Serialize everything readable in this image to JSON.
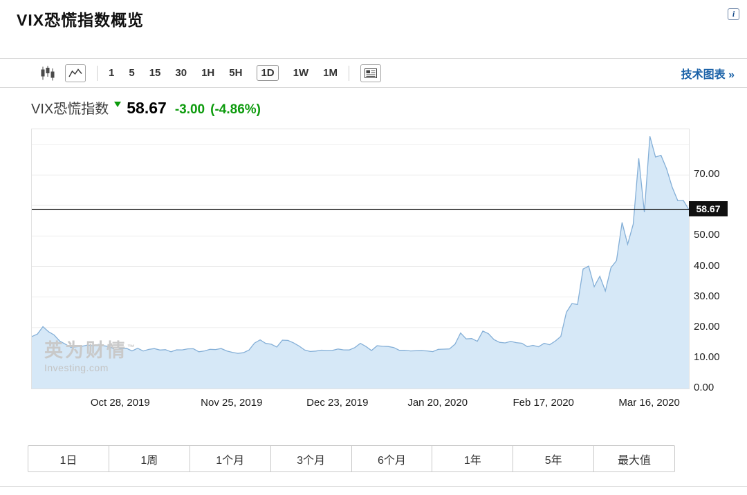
{
  "page": {
    "title": "VIX恐慌指数概览",
    "info_glyph": "i"
  },
  "toolbar": {
    "intervals": [
      "1",
      "5",
      "15",
      "30",
      "1H",
      "5H",
      "1D",
      "1W",
      "1M"
    ],
    "selected_interval": "1D",
    "tech_chart_link": "技术图表 »",
    "link_color": "#1b62a8"
  },
  "quote": {
    "name": "VIX恐慌指数",
    "price": "58.67",
    "change": "-3.00",
    "change_percent": "(-4.86%)",
    "direction": "down",
    "change_color": "#0d9b0d"
  },
  "watermark": {
    "cn": "英为财情",
    "tm": "™",
    "en": "Investing.com"
  },
  "ranges": [
    "1日",
    "1周",
    "1个月",
    "3个月",
    "6个月",
    "1年",
    "5年",
    "最大值"
  ],
  "chart_data": {
    "type": "area",
    "title": "VIX恐慌指数",
    "xlabel": "",
    "ylabel": "",
    "grid": true,
    "legend": "none",
    "ylim": [
      0,
      85
    ],
    "current_price": 58.67,
    "x": [
      "2019-10-04",
      "2019-10-07",
      "2019-10-08",
      "2019-10-09",
      "2019-10-10",
      "2019-10-11",
      "2019-10-14",
      "2019-10-15",
      "2019-10-16",
      "2019-10-17",
      "2019-10-18",
      "2019-10-21",
      "2019-10-22",
      "2019-10-23",
      "2019-10-24",
      "2019-10-25",
      "2019-10-28",
      "2019-10-29",
      "2019-10-30",
      "2019-10-31",
      "2019-11-01",
      "2019-11-04",
      "2019-11-05",
      "2019-11-06",
      "2019-11-07",
      "2019-11-08",
      "2019-11-11",
      "2019-11-12",
      "2019-11-13",
      "2019-11-14",
      "2019-11-15",
      "2019-11-18",
      "2019-11-19",
      "2019-11-20",
      "2019-11-21",
      "2019-11-22",
      "2019-11-25",
      "2019-11-26",
      "2019-11-27",
      "2019-11-29",
      "2019-12-02",
      "2019-12-03",
      "2019-12-04",
      "2019-12-05",
      "2019-12-06",
      "2019-12-09",
      "2019-12-10",
      "2019-12-11",
      "2019-12-12",
      "2019-12-13",
      "2019-12-16",
      "2019-12-17",
      "2019-12-18",
      "2019-12-19",
      "2019-12-20",
      "2019-12-23",
      "2019-12-24",
      "2019-12-26",
      "2019-12-27",
      "2019-12-30",
      "2019-12-31",
      "2020-01-02",
      "2020-01-03",
      "2020-01-06",
      "2020-01-07",
      "2020-01-08",
      "2020-01-09",
      "2020-01-10",
      "2020-01-13",
      "2020-01-14",
      "2020-01-15",
      "2020-01-16",
      "2020-01-17",
      "2020-01-21",
      "2020-01-22",
      "2020-01-23",
      "2020-01-24",
      "2020-01-27",
      "2020-01-28",
      "2020-01-29",
      "2020-01-30",
      "2020-01-31",
      "2020-02-03",
      "2020-02-04",
      "2020-02-05",
      "2020-02-06",
      "2020-02-07",
      "2020-02-10",
      "2020-02-11",
      "2020-02-12",
      "2020-02-13",
      "2020-02-14",
      "2020-02-18",
      "2020-02-19",
      "2020-02-20",
      "2020-02-21",
      "2020-02-24",
      "2020-02-25",
      "2020-02-26",
      "2020-02-27",
      "2020-02-28",
      "2020-03-02",
      "2020-03-03",
      "2020-03-04",
      "2020-03-05",
      "2020-03-06",
      "2020-03-09",
      "2020-03-10",
      "2020-03-11",
      "2020-03-12",
      "2020-03-13",
      "2020-03-16",
      "2020-03-17",
      "2020-03-18",
      "2020-03-19",
      "2020-03-20",
      "2020-03-23",
      "2020-03-24",
      "2020-03-25"
    ],
    "values": [
      17.04,
      17.86,
      20.28,
      18.64,
      17.57,
      15.58,
      14.57,
      13.54,
      13.68,
      13.85,
      14.25,
      14.02,
      14.46,
      14.01,
      13.71,
      12.65,
      13.11,
      13.2,
      12.33,
      13.22,
      12.3,
      12.83,
      13.1,
      12.62,
      12.73,
      12.07,
      12.69,
      12.68,
      13.0,
      13.05,
      12.05,
      12.34,
      12.86,
      12.78,
      13.13,
      12.34,
      11.87,
      11.54,
      11.75,
      12.62,
      14.91,
      15.96,
      14.8,
      14.52,
      13.62,
      15.86,
      15.77,
      14.99,
      13.94,
      12.63,
      12.14,
      12.29,
      12.58,
      12.5,
      12.51,
      12.96,
      12.67,
      12.65,
      13.43,
      14.82,
      13.78,
      12.47,
      14.02,
      13.85,
      13.79,
      13.45,
      12.54,
      12.56,
      12.32,
      12.39,
      12.42,
      12.32,
      12.1,
      12.85,
      12.91,
      12.98,
      14.56,
      18.23,
      16.28,
      16.39,
      15.49,
      18.84,
      17.97,
      16.05,
      15.15,
      14.96,
      15.47,
      15.04,
      14.84,
      13.74,
      14.15,
      13.68,
      14.83,
      14.38,
      15.56,
      17.08,
      25.03,
      27.85,
      27.56,
      39.16,
      40.11,
      33.42,
      36.82,
      31.99,
      39.62,
      41.94,
      54.46,
      47.3,
      53.9,
      75.47,
      57.83,
      82.69,
      75.91,
      76.45,
      72.0,
      66.04,
      61.59,
      61.67,
      58.67
    ],
    "y_ticks": [
      {
        "value": 70,
        "label": "70.00"
      },
      {
        "value": 50,
        "label": "50.00"
      },
      {
        "value": 40,
        "label": "40.00"
      },
      {
        "value": 30,
        "label": "30.00"
      },
      {
        "value": 20,
        "label": "20.00"
      },
      {
        "value": 10,
        "label": "10.00"
      },
      {
        "value": 0,
        "label": "0.00"
      }
    ],
    "gridline_values": [
      10,
      20,
      30,
      40,
      50,
      60,
      70,
      80
    ],
    "x_ticks": [
      {
        "label": "Oct 28, 2019",
        "index": 16
      },
      {
        "label": "Nov 25, 2019",
        "index": 36
      },
      {
        "label": "Dec 23, 2019",
        "index": 55
      },
      {
        "label": "Jan 20, 2020",
        "index": 73
      },
      {
        "label": "Feb 17, 2020",
        "index": 92
      },
      {
        "label": "Mar 16, 2020",
        "index": 111
      }
    ],
    "colors": {
      "area_fill": "#d6e8f7",
      "line": "#84afd7",
      "price_line": "#1a1a1a",
      "grid": "#ededed",
      "badge_bg": "#111111"
    }
  }
}
